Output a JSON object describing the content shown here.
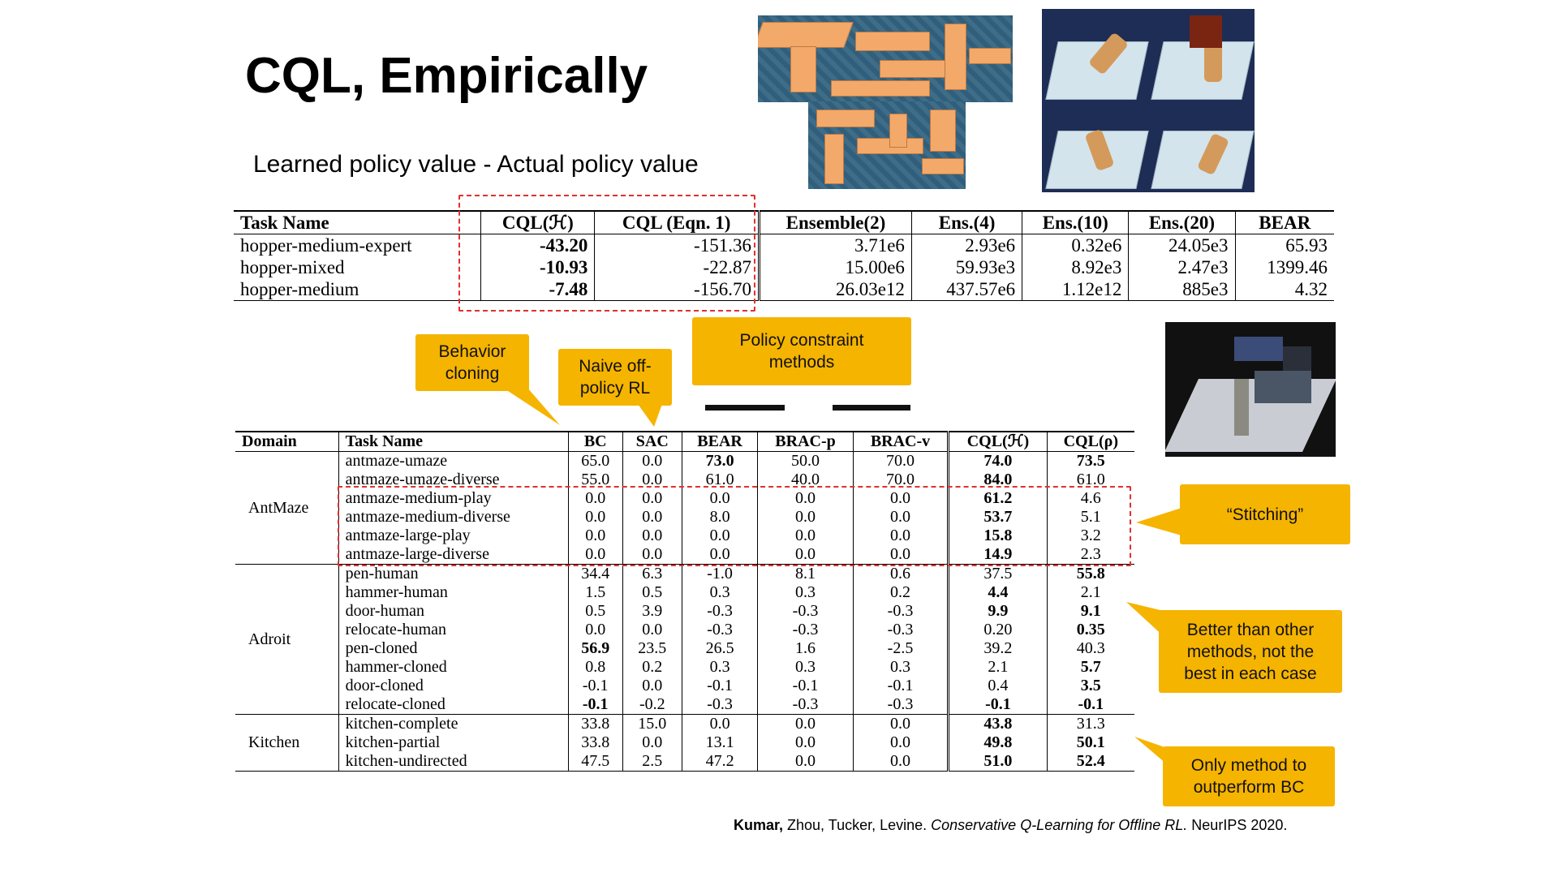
{
  "slide": {
    "title": "CQL, Empirically",
    "subtitle": "Learned policy value - Actual policy value"
  },
  "table1": {
    "headers": [
      "Task Name",
      "CQL(ℋ)",
      "CQL (Eqn. 1)",
      "Ensemble(2)",
      "Ens.(4)",
      "Ens.(10)",
      "Ens.(20)",
      "BEAR"
    ],
    "rows": [
      {
        "task": "hopper-medium-expert",
        "cql_h": "-43.20",
        "cql_eq1": "-151.36",
        "ens2": "3.71e6",
        "ens4": "2.93e6",
        "ens10": "0.32e6",
        "ens20": "24.05e3",
        "bear": "65.93"
      },
      {
        "task": "hopper-mixed",
        "cql_h": "-10.93",
        "cql_eq1": "-22.87",
        "ens2": "15.00e6",
        "ens4": "59.93e3",
        "ens10": "8.92e3",
        "ens20": "2.47e3",
        "bear": "1399.46"
      },
      {
        "task": "hopper-medium",
        "cql_h": "-7.48",
        "cql_eq1": "-156.70",
        "ens2": "26.03e12",
        "ens4": "437.57e6",
        "ens10": "1.12e12",
        "ens20": "885e3",
        "bear": "4.32"
      }
    ]
  },
  "table2": {
    "headers": [
      "Domain",
      "Task Name",
      "BC",
      "SAC",
      "BEAR",
      "BRAC-p",
      "BRAC-v",
      "CQL(ℋ)",
      "CQL(ρ)"
    ],
    "domains": [
      "AntMaze",
      "Adroit",
      "Kitchen"
    ],
    "rows": [
      [
        "antmaze-umaze",
        "65.0",
        "0.0",
        "73.0",
        "50.0",
        "70.0",
        "74.0",
        "73.5"
      ],
      [
        "antmaze-umaze-diverse",
        "55.0",
        "0.0",
        "61.0",
        "40.0",
        "70.0",
        "84.0",
        "61.0"
      ],
      [
        "antmaze-medium-play",
        "0.0",
        "0.0",
        "0.0",
        "0.0",
        "0.0",
        "61.2",
        "4.6"
      ],
      [
        "antmaze-medium-diverse",
        "0.0",
        "0.0",
        "8.0",
        "0.0",
        "0.0",
        "53.7",
        "5.1"
      ],
      [
        "antmaze-large-play",
        "0.0",
        "0.0",
        "0.0",
        "0.0",
        "0.0",
        "15.8",
        "3.2"
      ],
      [
        "antmaze-large-diverse",
        "0.0",
        "0.0",
        "0.0",
        "0.0",
        "0.0",
        "14.9",
        "2.3"
      ],
      [
        "pen-human",
        "34.4",
        "6.3",
        "-1.0",
        "8.1",
        "0.6",
        "37.5",
        "55.8"
      ],
      [
        "hammer-human",
        "1.5",
        "0.5",
        "0.3",
        "0.3",
        "0.2",
        "4.4",
        "2.1"
      ],
      [
        "door-human",
        "0.5",
        "3.9",
        "-0.3",
        "-0.3",
        "-0.3",
        "9.9",
        "9.1"
      ],
      [
        "relocate-human",
        "0.0",
        "0.0",
        "-0.3",
        "-0.3",
        "-0.3",
        "0.20",
        "0.35"
      ],
      [
        "pen-cloned",
        "56.9",
        "23.5",
        "26.5",
        "1.6",
        "-2.5",
        "39.2",
        "40.3"
      ],
      [
        "hammer-cloned",
        "0.8",
        "0.2",
        "0.3",
        "0.3",
        "0.3",
        "2.1",
        "5.7"
      ],
      [
        "door-cloned",
        "-0.1",
        "0.0",
        "-0.1",
        "-0.1",
        "-0.1",
        "0.4",
        "3.5"
      ],
      [
        "relocate-cloned",
        "-0.1",
        "-0.2",
        "-0.3",
        "-0.3",
        "-0.3",
        "-0.1",
        "-0.1"
      ],
      [
        "kitchen-complete",
        "33.8",
        "15.0",
        "0.0",
        "0.0",
        "0.0",
        "43.8",
        "31.3"
      ],
      [
        "kitchen-partial",
        "33.8",
        "0.0",
        "13.1",
        "0.0",
        "0.0",
        "49.8",
        "50.1"
      ],
      [
        "kitchen-undirected",
        "47.5",
        "2.5",
        "47.2",
        "0.0",
        "0.0",
        "51.0",
        "52.4"
      ]
    ]
  },
  "callouts": {
    "behavior_cloning": [
      "Behavior",
      "cloning"
    ],
    "naive_offpolicy": [
      "Naive off-",
      "policy RL"
    ],
    "policy_constraint": [
      "Policy constraint",
      "methods"
    ],
    "stitching": "“Stitching”",
    "better_than": [
      "Better than other",
      "methods,  not the",
      "best in each case"
    ],
    "only_method": [
      "Only method to",
      "outperform BC"
    ],
    "color": "#f5b400"
  },
  "citation": {
    "first_author": "Kumar,",
    "other_authors": " Zhou, Tucker, Levine. ",
    "title": "Conservative Q-Learning for Offline RL.",
    "venue": " NeurIPS 2020."
  },
  "images": {
    "maze": "antmaze-environment",
    "robot": "adroit-hand-environment",
    "kitchen": "kitchen-environment"
  }
}
